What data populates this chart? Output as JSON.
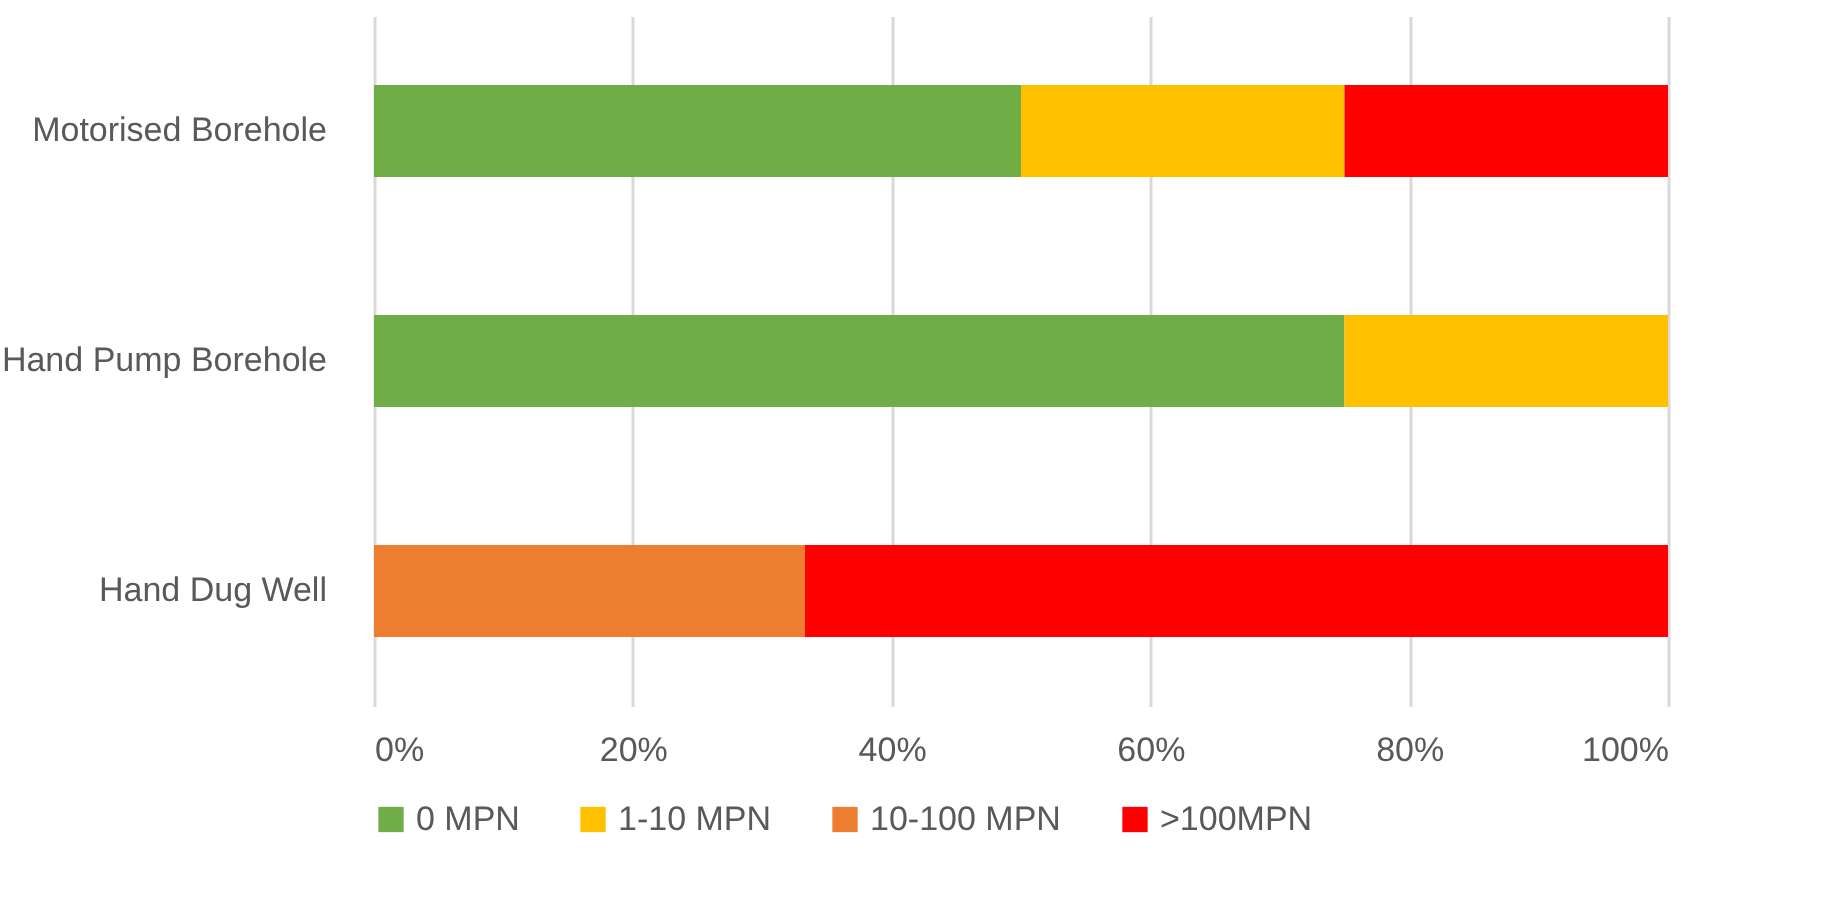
{
  "chart_data": {
    "type": "bar",
    "orientation": "horizontal",
    "stacked": true,
    "categories": [
      "Motorised Borehole",
      "Hand Pump Borehole",
      "Hand Dug Well"
    ],
    "series": [
      {
        "name": "0 MPN",
        "color": "#70ad47",
        "values": [
          50,
          75,
          0
        ]
      },
      {
        "name": "1-10 MPN",
        "color": "#ffc000",
        "values": [
          25,
          25,
          0
        ]
      },
      {
        "name": "10-100 MPN",
        "color": "#ed7d31",
        "values": [
          0,
          0,
          33.3
        ]
      },
      {
        "name": ">100MPN",
        "color": "#ff0000",
        "values": [
          25,
          0,
          66.7
        ]
      }
    ],
    "xlim": [
      0,
      100
    ],
    "xticks": [
      {
        "value": 0,
        "label": "0%"
      },
      {
        "value": 20,
        "label": "20%"
      },
      {
        "value": 40,
        "label": "40%"
      },
      {
        "value": 60,
        "label": "60%"
      },
      {
        "value": 80,
        "label": "80%"
      },
      {
        "value": 100,
        "label": "100%"
      }
    ],
    "grid": "x",
    "legend": "bottom"
  }
}
